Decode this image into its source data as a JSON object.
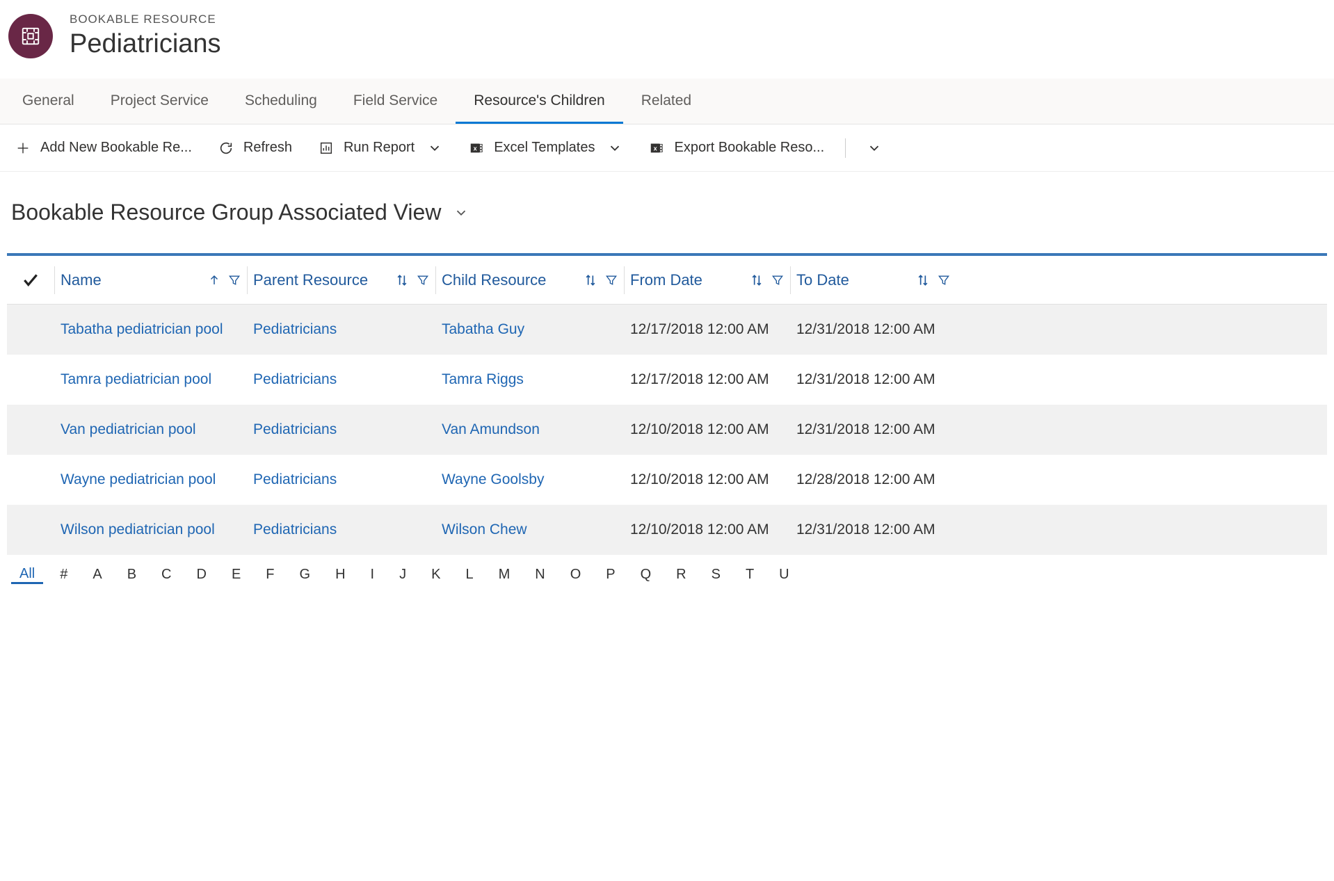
{
  "header": {
    "entity_type": "BOOKABLE RESOURCE",
    "entity_name": "Pediatricians"
  },
  "tabs": [
    {
      "label": "General",
      "active": false
    },
    {
      "label": "Project Service",
      "active": false
    },
    {
      "label": "Scheduling",
      "active": false
    },
    {
      "label": "Field Service",
      "active": false
    },
    {
      "label": "Resource's Children",
      "active": true
    },
    {
      "label": "Related",
      "active": false
    }
  ],
  "toolbar": {
    "add": "Add New Bookable Re...",
    "refresh": "Refresh",
    "run_report": "Run Report",
    "excel_templates": "Excel Templates",
    "export": "Export Bookable Reso..."
  },
  "view": {
    "title": "Bookable Resource Group Associated View"
  },
  "grid": {
    "columns": [
      {
        "label": "Name",
        "sort": "up"
      },
      {
        "label": "Parent Resource",
        "sort": "both"
      },
      {
        "label": "Child Resource",
        "sort": "both"
      },
      {
        "label": "From Date",
        "sort": "both"
      },
      {
        "label": "To Date",
        "sort": "both"
      }
    ],
    "rows": [
      {
        "name": "Tabatha pediatrician pool",
        "parent": "Pediatricians",
        "child": "Tabatha Guy",
        "from": "12/17/2018 12:00 AM",
        "to": "12/31/2018 12:00 AM"
      },
      {
        "name": "Tamra pediatrician pool",
        "parent": "Pediatricians",
        "child": "Tamra Riggs",
        "from": "12/17/2018 12:00 AM",
        "to": "12/31/2018 12:00 AM"
      },
      {
        "name": "Van pediatrician pool",
        "parent": "Pediatricians",
        "child": "Van Amundson",
        "from": "12/10/2018 12:00 AM",
        "to": "12/31/2018 12:00 AM"
      },
      {
        "name": "Wayne pediatrician pool",
        "parent": "Pediatricians",
        "child": "Wayne Goolsby",
        "from": "12/10/2018 12:00 AM",
        "to": "12/28/2018 12:00 AM"
      },
      {
        "name": "Wilson pediatrician pool",
        "parent": "Pediatricians",
        "child": "Wilson Chew",
        "from": "12/10/2018 12:00 AM",
        "to": "12/31/2018 12:00 AM"
      }
    ]
  },
  "alpha": {
    "items": [
      "All",
      "#",
      "A",
      "B",
      "C",
      "D",
      "E",
      "F",
      "G",
      "H",
      "I",
      "J",
      "K",
      "L",
      "M",
      "N",
      "O",
      "P",
      "Q",
      "R",
      "S",
      "T",
      "U"
    ],
    "active": "All"
  },
  "colors": {
    "accent": "#0078d4",
    "link": "#1f66b3",
    "circle": "#692746",
    "grid_border": "#3b78b8"
  }
}
